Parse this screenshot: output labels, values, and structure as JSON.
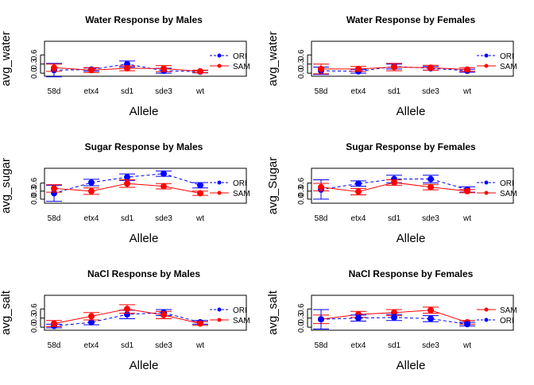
{
  "figure": {
    "colors": {
      "ORI": "#0000ff",
      "SAM": "#ff0000",
      "axis": "#000000"
    }
  },
  "chart_data": [
    {
      "type": "line",
      "title": "Water Response by Males",
      "xlabel": "Allele",
      "ylabel": "avg_water",
      "categories": [
        "58d",
        "etx4",
        "sd1",
        "sde3",
        "wt"
      ],
      "y_ticks": [
        "0.0",
        "0.3",
        "0.6"
      ],
      "ylim": [
        -0.1,
        1.05
      ],
      "legend": {
        "position": "right",
        "order": [
          "ORI",
          "SAM"
        ]
      },
      "series": [
        {
          "name": "ORI",
          "color": "#0000ff",
          "line_style": "dashed",
          "values": [
            0.1,
            0.12,
            0.3,
            0.08,
            0.05
          ],
          "error": [
            0.22,
            0.05,
            0.1,
            0.08,
            0.04
          ]
        },
        {
          "name": "SAM",
          "color": "#ff0000",
          "line_style": "solid",
          "values": [
            0.18,
            0.1,
            0.16,
            0.15,
            0.06
          ],
          "error": [
            0.12,
            0.08,
            0.08,
            0.1,
            0.04
          ]
        }
      ]
    },
    {
      "type": "line",
      "title": "Water Response by Females",
      "xlabel": "Allele",
      "ylabel": "avg_water",
      "categories": [
        "58d",
        "etx4",
        "sd1",
        "sde3",
        "wt"
      ],
      "y_ticks": [
        "0.0",
        "0.3",
        "0.6"
      ],
      "ylim": [
        -0.1,
        1.05
      ],
      "legend": {
        "position": "right",
        "order": [
          "ORI",
          "SAM"
        ]
      },
      "series": [
        {
          "name": "ORI",
          "color": "#0000ff",
          "line_style": "dashed",
          "values": [
            0.08,
            0.06,
            0.22,
            0.16,
            0.08
          ],
          "error": [
            0.12,
            0.06,
            0.08,
            0.06,
            0.05
          ]
        },
        {
          "name": "SAM",
          "color": "#ff0000",
          "line_style": "solid",
          "values": [
            0.14,
            0.14,
            0.2,
            0.18,
            0.12
          ],
          "error": [
            0.16,
            0.08,
            0.12,
            0.08,
            0.06
          ]
        }
      ]
    },
    {
      "type": "line",
      "title": "Sugar Response by Males",
      "xlabel": "Allele",
      "ylabel": "avg_sugar",
      "categories": [
        "58d",
        "etx4",
        "sd1",
        "sde3",
        "wt"
      ],
      "y_ticks": [
        "0.0",
        "0.3",
        "0.6"
      ],
      "ylim": [
        -0.15,
        1.15
      ],
      "legend": {
        "position": "right",
        "order": [
          "ORI",
          "SAM"
        ]
      },
      "series": [
        {
          "name": "ORI",
          "color": "#0000ff",
          "line_style": "dashed",
          "values": [
            0.22,
            0.62,
            0.82,
            0.95,
            0.52
          ],
          "error": [
            0.3,
            0.12,
            0.12,
            0.1,
            0.1
          ]
        },
        {
          "name": "SAM",
          "color": "#ff0000",
          "line_style": "solid",
          "values": [
            0.4,
            0.3,
            0.58,
            0.48,
            0.22
          ],
          "error": [
            0.14,
            0.12,
            0.14,
            0.1,
            0.08
          ]
        }
      ]
    },
    {
      "type": "line",
      "title": "Sugar Response by Females",
      "xlabel": "Allele",
      "ylabel": "avg_Sugar",
      "categories": [
        "58d",
        "etx4",
        "sd1",
        "sde3",
        "wt"
      ],
      "y_ticks": [
        "0.0",
        "0.3",
        "0.6"
      ],
      "ylim": [
        -0.15,
        1.15
      ],
      "legend": {
        "position": "right",
        "order": [
          "ORI",
          "SAM"
        ]
      },
      "series": [
        {
          "name": "ORI",
          "color": "#0000ff",
          "line_style": "dashed",
          "values": [
            0.36,
            0.58,
            0.75,
            0.75,
            0.36
          ],
          "error": [
            0.36,
            0.1,
            0.14,
            0.14,
            0.1
          ]
        },
        {
          "name": "SAM",
          "color": "#ff0000",
          "line_style": "solid",
          "values": [
            0.45,
            0.28,
            0.62,
            0.45,
            0.3
          ],
          "error": [
            0.14,
            0.12,
            0.1,
            0.1,
            0.06
          ]
        }
      ]
    },
    {
      "type": "line",
      "title": "NaCl Response by Males",
      "xlabel": "Allele",
      "ylabel": "avg_salt",
      "categories": [
        "58d",
        "etx4",
        "sd1",
        "sde3",
        "wt"
      ],
      "y_ticks": [
        "0.0",
        "0.3",
        "0.6"
      ],
      "ylim": [
        -0.1,
        1.05
      ],
      "legend": {
        "position": "right",
        "order": [
          "ORI",
          "SAM"
        ]
      },
      "series": [
        {
          "name": "ORI",
          "color": "#0000ff",
          "line_style": "dashed",
          "values": [
            0.04,
            0.16,
            0.42,
            0.48,
            0.16
          ],
          "error": [
            0.06,
            0.08,
            0.14,
            0.1,
            0.06
          ]
        },
        {
          "name": "SAM",
          "color": "#ff0000",
          "line_style": "solid",
          "values": [
            0.12,
            0.36,
            0.6,
            0.4,
            0.12
          ],
          "error": [
            0.1,
            0.12,
            0.14,
            0.12,
            0.06
          ]
        }
      ]
    },
    {
      "type": "line",
      "title": "NaCl Response by Females",
      "xlabel": "Allele",
      "ylabel": "avg_salt",
      "categories": [
        "58d",
        "etx4",
        "sd1",
        "sde3",
        "wt"
      ],
      "y_ticks": [
        "0.0",
        "0.3",
        "0.6"
      ],
      "ylim": [
        -0.1,
        1.05
      ],
      "legend": {
        "position": "right",
        "order": [
          "SAM",
          "ORI"
        ]
      },
      "series": [
        {
          "name": "SAM",
          "color": "#ff0000",
          "line_style": "solid",
          "values": [
            0.26,
            0.42,
            0.48,
            0.56,
            0.16
          ],
          "error": [
            0.14,
            0.1,
            0.1,
            0.1,
            0.06
          ]
        },
        {
          "name": "ORI",
          "color": "#0000ff",
          "line_style": "dashed",
          "values": [
            0.26,
            0.3,
            0.32,
            0.28,
            0.1
          ],
          "error": [
            0.32,
            0.1,
            0.1,
            0.1,
            0.06
          ]
        }
      ]
    }
  ]
}
